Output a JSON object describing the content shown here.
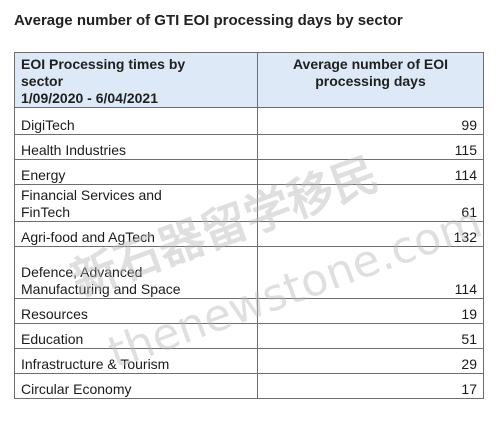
{
  "title": "Average number of GTI EOI processing days by sector",
  "table": {
    "header_sector_lines": [
      "EOI Processing times by",
      "sector",
      "1/09/2020 - 6/04/2021"
    ],
    "header_days_lines": [
      "Average number of EOI",
      "processing days"
    ],
    "rows": [
      {
        "sector_lines": [
          "DigiTech"
        ],
        "days": "99"
      },
      {
        "sector_lines": [
          "Health Industries"
        ],
        "days": "115"
      },
      {
        "sector_lines": [
          "Energy"
        ],
        "days": "114"
      },
      {
        "sector_lines": [
          "Financial Services and",
          "FinTech"
        ],
        "days": "61"
      },
      {
        "sector_lines": [
          "Agri-food and AgTech"
        ],
        "days": "132"
      },
      {
        "sector_lines": [
          "Defence, Advanced",
          "Manufacturing and Space"
        ],
        "days": "114"
      },
      {
        "sector_lines": [
          "Resources"
        ],
        "days": "19"
      },
      {
        "sector_lines": [
          "Education"
        ],
        "days": "51"
      },
      {
        "sector_lines": [
          "Infrastructure & Tourism"
        ],
        "days": "29"
      },
      {
        "sector_lines": [
          "Circular Economy"
        ],
        "days": "17"
      }
    ]
  },
  "watermark": {
    "text_cn": "新石器留学移民",
    "text_en": "thenewstone.com",
    "color": "#b9b9b9"
  }
}
